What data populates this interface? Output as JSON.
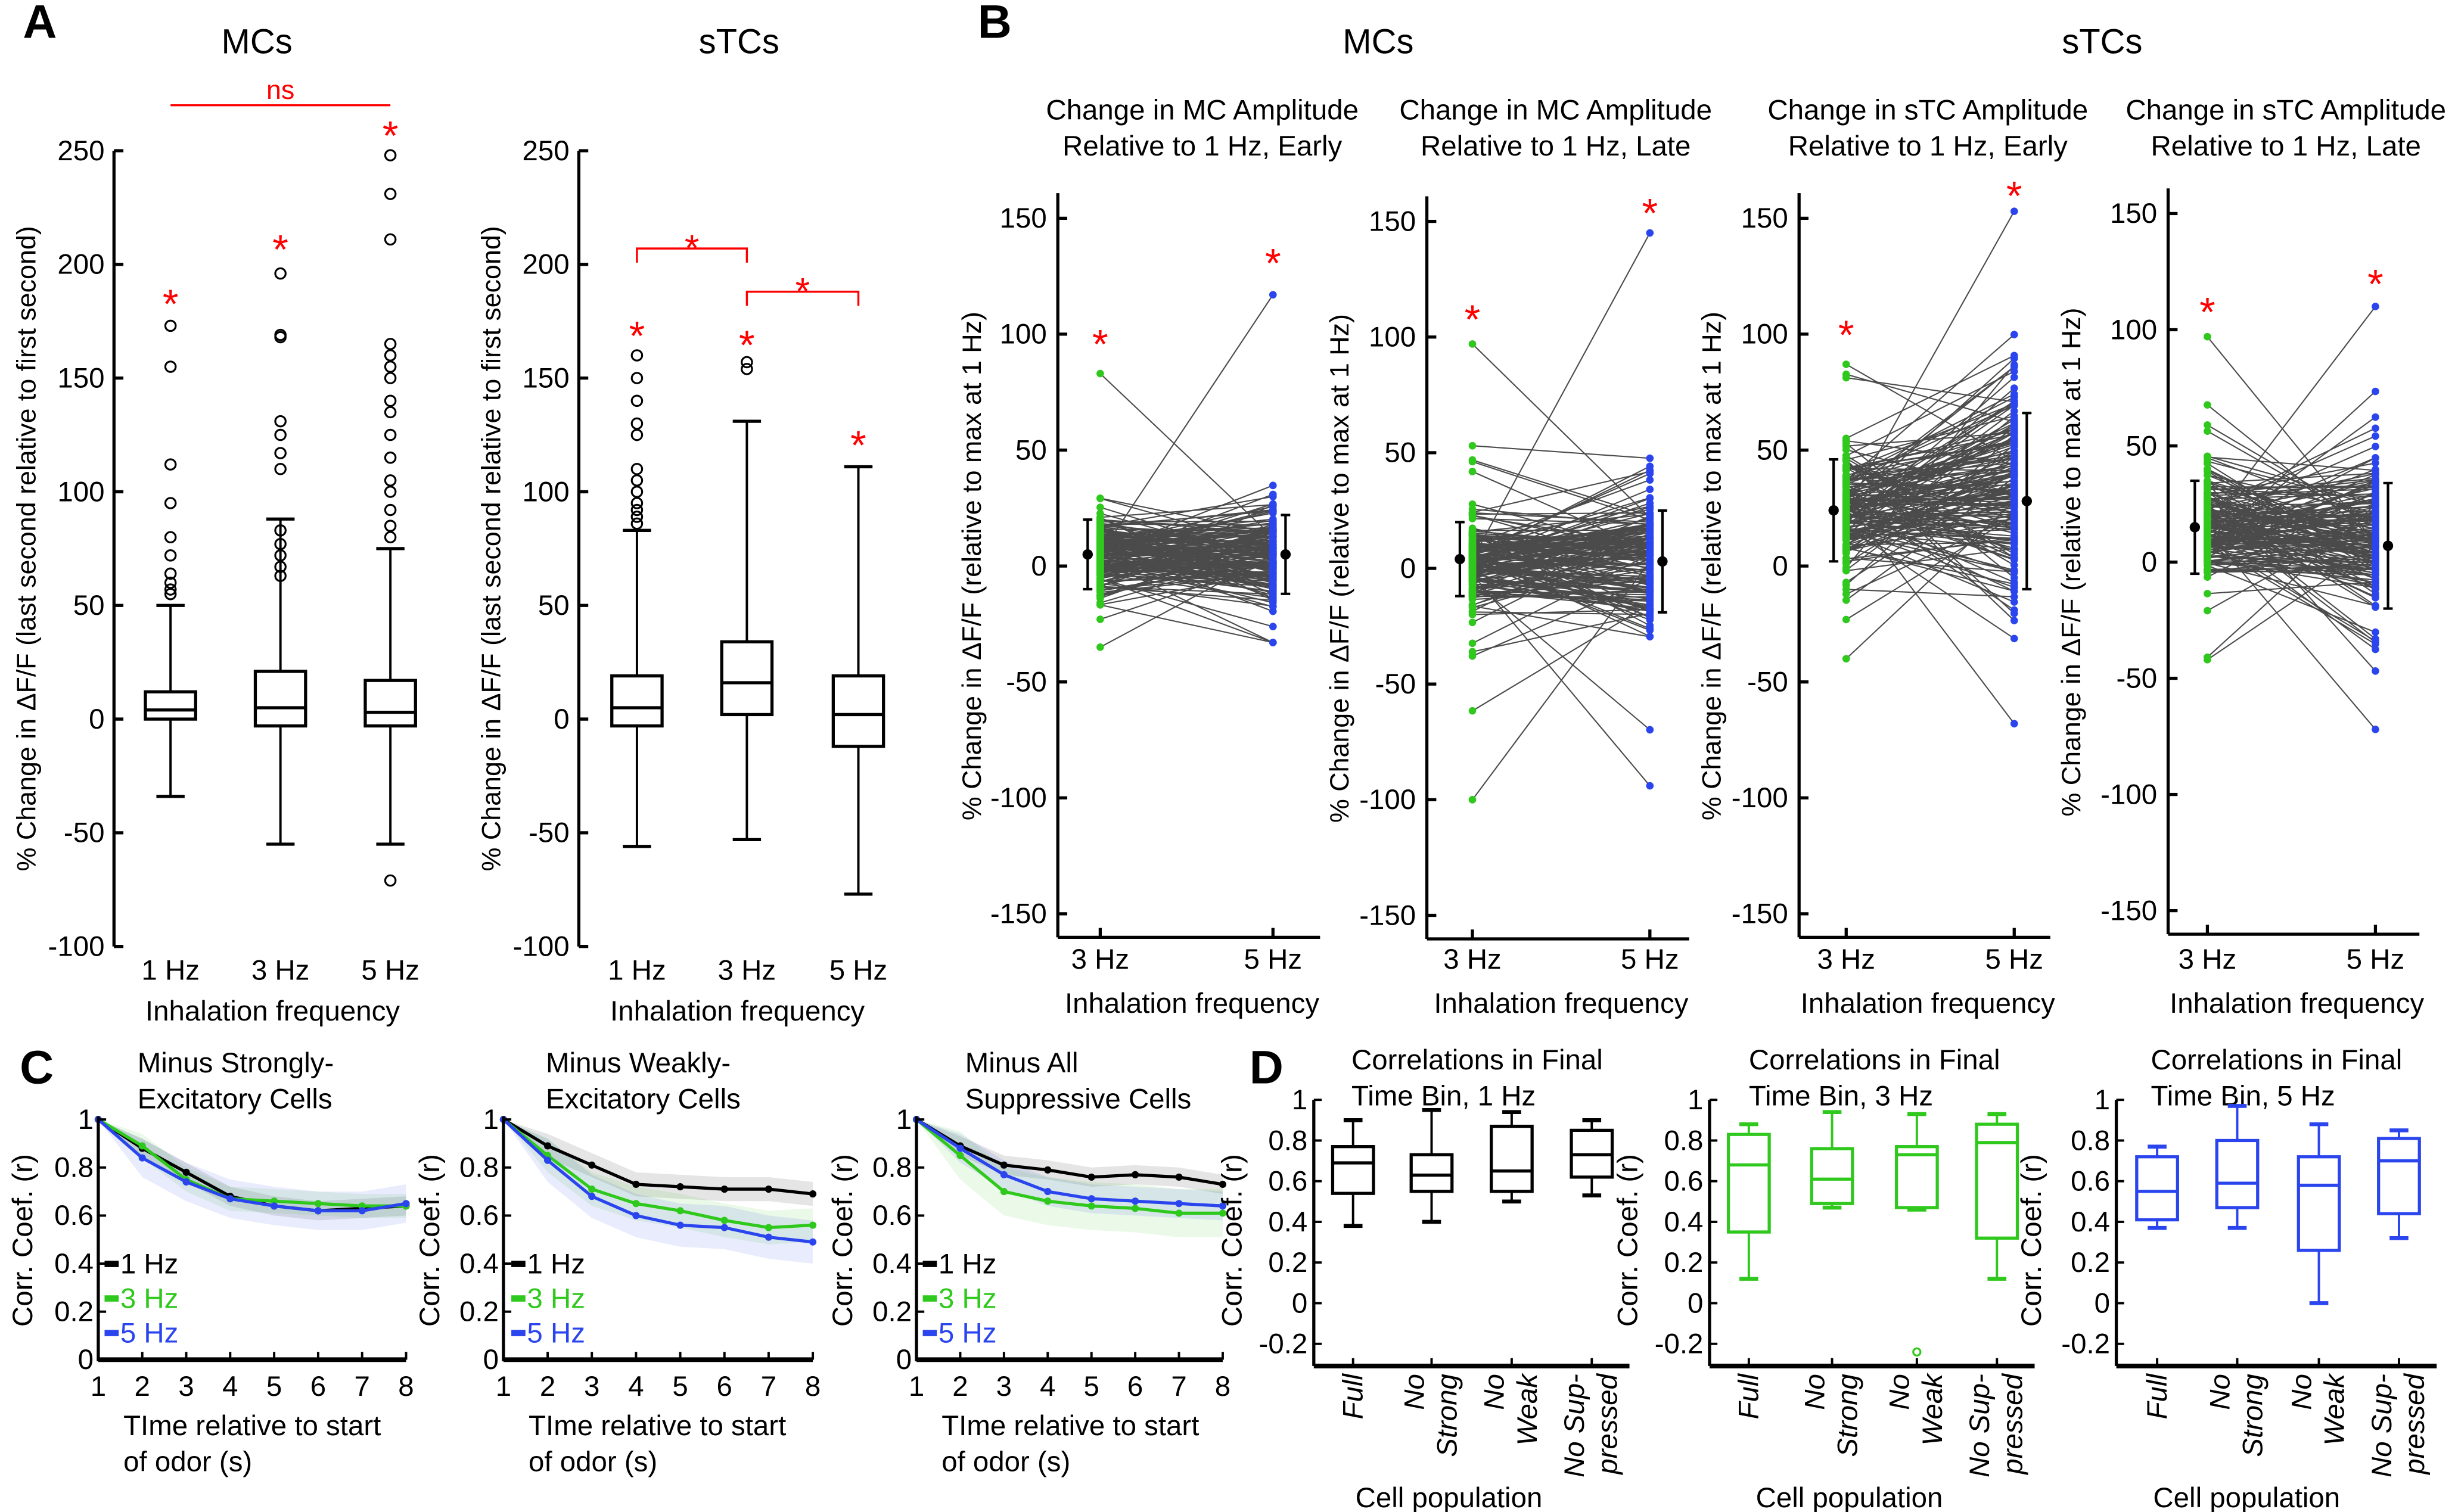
{
  "panel_labels": [
    "A",
    "B",
    "C",
    "D"
  ],
  "panel_b_group_titles": [
    "MCs",
    "sTCs"
  ],
  "colors": {
    "red": "#ff0000",
    "green": "#2fc81c",
    "blue": "#2b45ee",
    "black": "#000000",
    "grey_lines": "#4b4b4b"
  },
  "chart_data": [
    {
      "type": "box",
      "title": "MCs",
      "ylabel": "% Change in ΔF/F (last second relative to first second)",
      "xlabel": "Inhalation frequency",
      "categories": [
        "1 Hz",
        "3 Hz",
        "5 Hz"
      ],
      "ylim": [
        -100,
        250
      ],
      "yticks": [
        "250",
        "200",
        "150",
        "100",
        "50",
        "0",
        "-50",
        "-100"
      ],
      "boxes": [
        {
          "whisker_low": -34,
          "q1": 0,
          "median": 4,
          "q3": 12,
          "whisker_high": 50,
          "outliers": [
            55,
            57,
            60,
            64,
            72,
            80,
            95,
            112,
            155,
            173
          ]
        },
        {
          "whisker_low": -55,
          "q1": -3,
          "median": 5,
          "q3": 21,
          "whisker_high": 88,
          "outliers": [
            63,
            67,
            72,
            77,
            83,
            110,
            117,
            125,
            131,
            168,
            169,
            196
          ]
        },
        {
          "whisker_low": -55,
          "q1": -3,
          "median": 3,
          "q3": 17,
          "whisker_high": 75,
          "outliers": [
            -71,
            80,
            85,
            92,
            100,
            105,
            115,
            125,
            135,
            140,
            150,
            155,
            160,
            165,
            211,
            231,
            248
          ]
        }
      ],
      "asterisks": [
        {
          "category": 0,
          "y": 186,
          "text": "*"
        },
        {
          "category": 1,
          "y": 210,
          "text": "*"
        },
        {
          "category": 2,
          "y": 260,
          "text": "*"
        }
      ],
      "brackets": [
        {
          "from": 0,
          "to": 2,
          "y": 270,
          "label": "ns"
        }
      ]
    },
    {
      "type": "box",
      "title": "sTCs",
      "ylabel": "% Change in ΔF/F (last second relative to first second)",
      "xlabel": "Inhalation frequency",
      "categories": [
        "1 Hz",
        "3 Hz",
        "5 Hz"
      ],
      "ylim": [
        -100,
        250
      ],
      "yticks": [
        "250",
        "200",
        "150",
        "100",
        "50",
        "0",
        "-50",
        "-100"
      ],
      "boxes": [
        {
          "whisker_low": -56,
          "q1": -3,
          "median": 5,
          "q3": 19,
          "whisker_high": 83,
          "outliers": [
            86,
            89,
            92,
            95,
            100,
            105,
            110,
            125,
            130,
            140,
            150,
            160
          ]
        },
        {
          "whisker_low": -53,
          "q1": 2,
          "median": 16,
          "q3": 34,
          "whisker_high": 131,
          "outliers": [
            154,
            157
          ]
        },
        {
          "whisker_low": -77,
          "q1": -12,
          "median": 2,
          "q3": 19,
          "whisker_high": 111,
          "outliers": []
        }
      ],
      "asterisks": [
        {
          "category": 0,
          "y": 172,
          "text": "*"
        },
        {
          "category": 1,
          "y": 168,
          "text": "*"
        },
        {
          "category": 2,
          "y": 124,
          "text": "*"
        }
      ],
      "brackets": [
        {
          "from": 0,
          "to": 1,
          "y": 207,
          "label": "*"
        },
        {
          "from": 1,
          "to": 2,
          "y": 188,
          "label": "*"
        }
      ]
    },
    {
      "type": "paired-line",
      "title_lines": [
        "Change in MC Amplitude",
        "Relative to 1 Hz, Early"
      ],
      "ylabel": "% Change in ΔF/F (relative to max at 1 Hz)",
      "xlabel": "Inhalation frequency",
      "categories": [
        "3 Hz",
        "5 Hz"
      ],
      "ylim": [
        -150,
        150
      ],
      "yticks": [
        "150",
        "100",
        "50",
        "0",
        "-50",
        "-100",
        "-150"
      ],
      "summary": [
        {
          "mean": 5,
          "sd": 15,
          "min": -35,
          "max": 83
        },
        {
          "mean": 5,
          "sd": 17,
          "min": -33,
          "max": 117
        }
      ],
      "asterisks": [
        {
          "category": 0,
          "y": 99,
          "text": "*"
        },
        {
          "category": 1,
          "y": 134,
          "text": "*"
        }
      ]
    },
    {
      "type": "paired-line",
      "title_lines": [
        "Change in MC Amplitude",
        "Relative to 1 Hz, Late"
      ],
      "ylabel": "% Change in ΔF/F (relative to max at 1 Hz)",
      "xlabel": "Inhalation frequency",
      "categories": [
        "3 Hz",
        "5 Hz"
      ],
      "ylim": [
        -150,
        150
      ],
      "yticks": [
        "150",
        "100",
        "50",
        "0",
        "-50",
        "-100",
        "-150"
      ],
      "summary": [
        {
          "mean": 4,
          "sd": 16,
          "min": -100,
          "max": 97
        },
        {
          "mean": 3,
          "sd": 22,
          "min": -94,
          "max": 145
        }
      ],
      "asterisks": [
        {
          "category": 0,
          "y": 111,
          "text": "*"
        },
        {
          "category": 1,
          "y": 157,
          "text": "*"
        }
      ]
    },
    {
      "type": "paired-line",
      "title_lines": [
        "Change in sTC Amplitude",
        "Relative to 1 Hz, Early"
      ],
      "ylabel": "% Change in ΔF/F (relative to max at 1 Hz)",
      "xlabel": "Inhalation frequency",
      "categories": [
        "3 Hz",
        "5 Hz"
      ],
      "ylim": [
        -150,
        150
      ],
      "yticks": [
        "150",
        "100",
        "50",
        "0",
        "-50",
        "-100",
        "-150"
      ],
      "summary": [
        {
          "mean": 24,
          "sd": 22,
          "min": -40,
          "max": 87
        },
        {
          "mean": 28,
          "sd": 38,
          "min": -68,
          "max": 153
        }
      ],
      "asterisks": [
        {
          "category": 0,
          "y": 103,
          "text": "*"
        },
        {
          "category": 1,
          "y": 163,
          "text": "*"
        }
      ]
    },
    {
      "type": "paired-line",
      "title_lines": [
        "Change in sTC Amplitude",
        "Relative to 1 Hz, Late"
      ],
      "ylabel": "% Change in ΔF/F (relative to max at 1 Hz)",
      "xlabel": "Inhalation frequency",
      "categories": [
        "3 Hz",
        "5 Hz"
      ],
      "ylim": [
        -150,
        150
      ],
      "yticks": [
        "150",
        "100",
        "50",
        "0",
        "-50",
        "-100",
        "-150"
      ],
      "summary": [
        {
          "mean": 15,
          "sd": 20,
          "min": -42,
          "max": 97
        },
        {
          "mean": 7,
          "sd": 27,
          "min": -72,
          "max": 110
        }
      ],
      "asterisks": [
        {
          "category": 0,
          "y": 111,
          "text": "*"
        },
        {
          "category": 1,
          "y": 123,
          "text": "*"
        }
      ]
    },
    {
      "type": "line",
      "title_lines": [
        "Minus Strongly-",
        "Excitatory Cells"
      ],
      "ylabel": "Corr. Coef. (r)",
      "xlabel_lines": [
        "TIme relative to start",
        "of odor (s)"
      ],
      "x": [
        1,
        2,
        3,
        4,
        5,
        6,
        7,
        8
      ],
      "xticks": [
        "1",
        "2",
        "3",
        "4",
        "5",
        "6",
        "7",
        "8"
      ],
      "ylim": [
        0,
        1
      ],
      "yticks": [
        "1",
        "0.8",
        "0.6",
        "0.4",
        "0.2",
        "0"
      ],
      "legend": "bottom-left",
      "series": [
        {
          "name": "1 Hz",
          "color": "#000000",
          "values": [
            1,
            0.88,
            0.78,
            0.68,
            0.64,
            0.62,
            0.63,
            0.64
          ],
          "error": 0.04
        },
        {
          "name": "3 Hz",
          "color": "#2fc81c",
          "values": [
            1,
            0.89,
            0.75,
            0.67,
            0.66,
            0.65,
            0.64,
            0.64
          ],
          "error": 0.05
        },
        {
          "name": "5 Hz",
          "color": "#2b45ee",
          "values": [
            1,
            0.84,
            0.74,
            0.67,
            0.64,
            0.62,
            0.62,
            0.65
          ],
          "error": 0.08
        }
      ]
    },
    {
      "type": "line",
      "title_lines": [
        "Minus Weakly-",
        "Excitatory Cells"
      ],
      "ylabel": "Corr. Coef. (r)",
      "xlabel_lines": [
        "TIme relative to start",
        "of odor (s)"
      ],
      "x": [
        1,
        2,
        3,
        4,
        5,
        6,
        7,
        8
      ],
      "xticks": [
        "1",
        "2",
        "3",
        "4",
        "5",
        "6",
        "7",
        "8"
      ],
      "ylim": [
        0,
        1
      ],
      "yticks": [
        "1",
        "0.8",
        "0.6",
        "0.4",
        "0.2",
        "0"
      ],
      "legend": "bottom-left",
      "series": [
        {
          "name": "1 Hz",
          "color": "#000000",
          "values": [
            1,
            0.89,
            0.81,
            0.73,
            0.72,
            0.71,
            0.71,
            0.69
          ],
          "error": 0.05
        },
        {
          "name": "3 Hz",
          "color": "#2fc81c",
          "values": [
            1,
            0.85,
            0.71,
            0.65,
            0.62,
            0.58,
            0.55,
            0.56
          ],
          "error": 0.07
        },
        {
          "name": "5 Hz",
          "color": "#2b45ee",
          "values": [
            1,
            0.83,
            0.68,
            0.6,
            0.56,
            0.55,
            0.51,
            0.49
          ],
          "error": 0.09
        }
      ]
    },
    {
      "type": "line",
      "title_lines": [
        "Minus All",
        "Suppressive Cells"
      ],
      "ylabel": "Corr. Coef. (r)",
      "xlabel_lines": [
        "TIme relative to start",
        "of odor (s)"
      ],
      "x": [
        1,
        2,
        3,
        4,
        5,
        6,
        7,
        8
      ],
      "xticks": [
        "1",
        "2",
        "3",
        "4",
        "5",
        "6",
        "7",
        "8"
      ],
      "ylim": [
        0,
        1
      ],
      "yticks": [
        "1",
        "0.8",
        "0.6",
        "0.4",
        "0.2",
        "0"
      ],
      "legend": "bottom-left",
      "series": [
        {
          "name": "1 Hz",
          "color": "#000000",
          "values": [
            1,
            0.89,
            0.81,
            0.79,
            0.76,
            0.77,
            0.76,
            0.73
          ],
          "error": 0.04
        },
        {
          "name": "3 Hz",
          "color": "#2fc81c",
          "values": [
            1,
            0.85,
            0.7,
            0.66,
            0.64,
            0.63,
            0.61,
            0.61
          ],
          "error": 0.1
        },
        {
          "name": "5 Hz",
          "color": "#2b45ee",
          "values": [
            1,
            0.88,
            0.77,
            0.7,
            0.67,
            0.66,
            0.65,
            0.64
          ],
          "error": 0.06
        }
      ]
    },
    {
      "type": "box",
      "title_lines": [
        "Correlations in Final",
        "Time Bin, 1 Hz"
      ],
      "color": "#000000",
      "ylabel": "Corr. Coef. (r)",
      "xlabel": "Cell population",
      "categories": [
        [
          "Full"
        ],
        [
          "No",
          "Strong"
        ],
        [
          "No",
          "Weak"
        ],
        [
          "No Sup-",
          "pressed"
        ]
      ],
      "ylim": [
        -0.3,
        1
      ],
      "yticks": [
        "1",
        "0.8",
        "0.6",
        "0.4",
        "0.2",
        "0",
        "-0.2"
      ],
      "boxes": [
        {
          "whisker_low": 0.38,
          "q1": 0.54,
          "median": 0.69,
          "q3": 0.77,
          "whisker_high": 0.9,
          "outliers": []
        },
        {
          "whisker_low": 0.4,
          "q1": 0.55,
          "median": 0.63,
          "q3": 0.73,
          "whisker_high": 0.95,
          "outliers": []
        },
        {
          "whisker_low": 0.5,
          "q1": 0.55,
          "median": 0.65,
          "q3": 0.87,
          "whisker_high": 0.94,
          "outliers": []
        },
        {
          "whisker_low": 0.53,
          "q1": 0.62,
          "median": 0.73,
          "q3": 0.85,
          "whisker_high": 0.9,
          "outliers": []
        }
      ]
    },
    {
      "type": "box",
      "title_lines": [
        "Correlations in Final",
        "Time Bin, 3 Hz"
      ],
      "color": "#2fc81c",
      "ylabel": "Corr. Coef. (r)",
      "xlabel": "Cell population",
      "categories": [
        [
          "Full"
        ],
        [
          "No",
          "Strong"
        ],
        [
          "No",
          "Weak"
        ],
        [
          "No Sup-",
          "pressed"
        ]
      ],
      "ylim": [
        -0.3,
        1
      ],
      "yticks": [
        "1",
        "0.8",
        "0.6",
        "0.4",
        "0.2",
        "0",
        "-0.2"
      ],
      "boxes": [
        {
          "whisker_low": 0.12,
          "q1": 0.35,
          "median": 0.68,
          "q3": 0.83,
          "whisker_high": 0.88,
          "outliers": []
        },
        {
          "whisker_low": 0.47,
          "q1": 0.49,
          "median": 0.61,
          "q3": 0.76,
          "whisker_high": 0.94,
          "outliers": []
        },
        {
          "whisker_low": 0.46,
          "q1": 0.47,
          "median": 0.73,
          "q3": 0.77,
          "whisker_high": 0.93,
          "outliers": [
            -0.24
          ]
        },
        {
          "whisker_low": 0.12,
          "q1": 0.32,
          "median": 0.79,
          "q3": 0.88,
          "whisker_high": 0.93,
          "outliers": []
        }
      ]
    },
    {
      "type": "box",
      "title_lines": [
        "Correlations in Final",
        "Time Bin, 5 Hz"
      ],
      "color": "#2b45ee",
      "ylabel": "Corr. Coef. (r)",
      "xlabel": "Cell population",
      "categories": [
        [
          "Full"
        ],
        [
          "No",
          "Strong"
        ],
        [
          "No",
          "Weak"
        ],
        [
          "No Sup-",
          "pressed"
        ]
      ],
      "ylim": [
        -0.3,
        1
      ],
      "yticks": [
        "1",
        "0.8",
        "0.6",
        "0.4",
        "0.2",
        "0",
        "-0.2"
      ],
      "boxes": [
        {
          "whisker_low": 0.37,
          "q1": 0.41,
          "median": 0.55,
          "q3": 0.72,
          "whisker_high": 0.77,
          "outliers": []
        },
        {
          "whisker_low": 0.37,
          "q1": 0.47,
          "median": 0.59,
          "q3": 0.8,
          "whisker_high": 0.97,
          "outliers": []
        },
        {
          "whisker_low": 0.0,
          "q1": 0.26,
          "median": 0.58,
          "q3": 0.72,
          "whisker_high": 0.88,
          "outliers": []
        },
        {
          "whisker_low": 0.32,
          "q1": 0.44,
          "median": 0.7,
          "q3": 0.81,
          "whisker_high": 0.85,
          "outliers": []
        }
      ]
    }
  ]
}
